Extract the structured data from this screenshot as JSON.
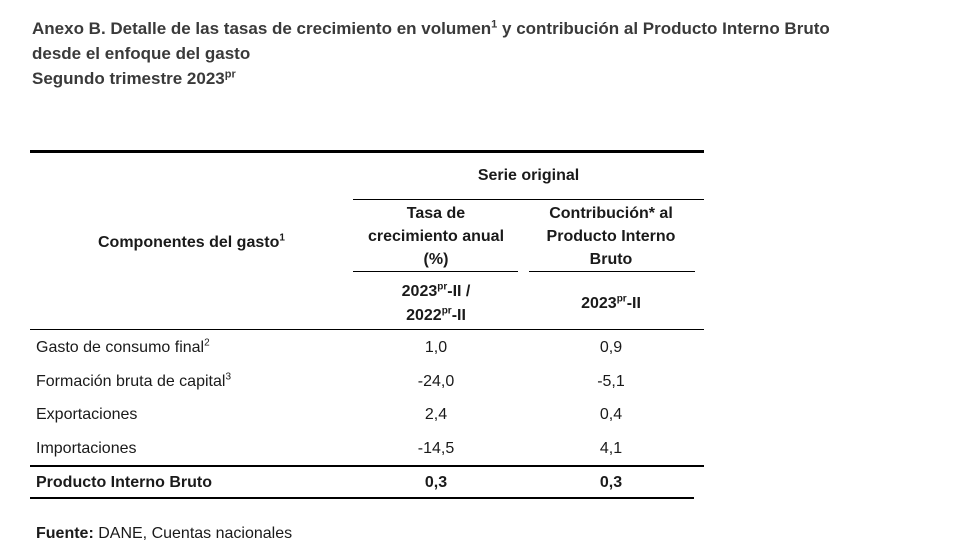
{
  "title": {
    "line1_prefix": "Anexo B. Detalle de las tasas de crecimiento en volumen",
    "line1_sup": "1",
    "line1_suffix": " y contribución al Producto Interno Bruto",
    "line2": "desde el enfoque del gasto",
    "line3_main": "Segundo trimestre 2023",
    "line3_sup": "pr"
  },
  "table": {
    "group_header": "Serie original",
    "row_header": {
      "label": "Componentes del gasto",
      "sup": "1"
    },
    "col1_header": {
      "line1": "Tasa de",
      "line2": "crecimiento anual",
      "line3": "(%)"
    },
    "col2_header": {
      "line1": "Contribución* al",
      "line2": "Producto Interno",
      "line3": "Bruto"
    },
    "col1_period": {
      "a_main": "2023",
      "a_sup": "pr",
      "a_rest": "-II /",
      "b_main": "2022",
      "b_sup": "pr",
      "b_rest": "-II"
    },
    "col2_period": {
      "main": "2023",
      "sup": "pr",
      "rest": "-II"
    },
    "rows": [
      {
        "label": "Gasto de consumo final",
        "sup": "2",
        "growth": "1,0",
        "contribution": "0,9"
      },
      {
        "label": "Formación bruta de capital",
        "sup": "3",
        "growth": "-24,0",
        "contribution": "-5,1"
      },
      {
        "label": "Exportaciones",
        "sup": "",
        "growth": "2,4",
        "contribution": "0,4"
      },
      {
        "label": "Importaciones",
        "sup": "",
        "growth": "-14,5",
        "contribution": "4,1"
      }
    ],
    "total": {
      "label": "Producto Interno Bruto",
      "growth": "0,3",
      "contribution": "0,3"
    }
  },
  "source": {
    "label": "Fuente:",
    "text": " DANE, Cuentas nacionales"
  }
}
